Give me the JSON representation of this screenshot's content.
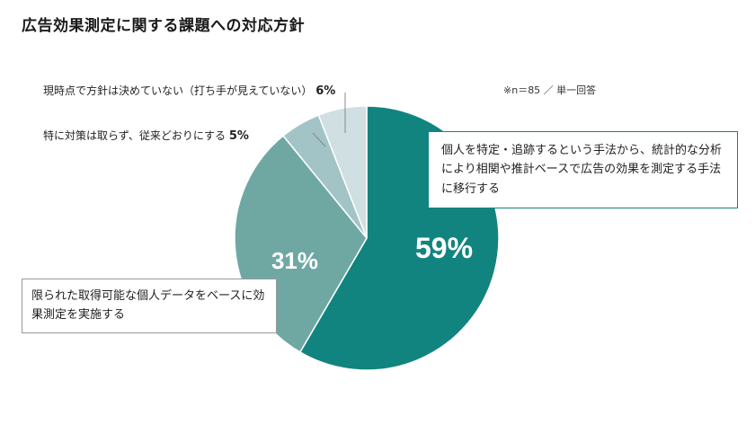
{
  "title": "広告効果測定に関する課題への対応方針",
  "note": "※n＝85 ／ 単一回答",
  "colors": {
    "teal_dark": "#12847f",
    "teal_mid": "#6fa8a3",
    "teal_light": "#a2c4c7",
    "teal_pale": "#cfdfe2"
  },
  "chart_data": {
    "type": "pie",
    "title": "広告効果測定に関する課題への対応方針",
    "slices": [
      {
        "label": "個人を特定・追跡するという手法から、統計的な分析により相関や推計ベースで広告の効果を測定する手法に移行する",
        "value": 59,
        "display": "59%"
      },
      {
        "label": "限られた取得可能な個人データをベースに効果測定を実施する",
        "value": 31,
        "display": "31%"
      },
      {
        "label": "特に対策は取らず、従来どおりにする",
        "value": 5,
        "display": "5%"
      },
      {
        "label": "現時点で方針は決めていない（打ち手が見えていない）",
        "value": 6,
        "display": "6%"
      }
    ]
  },
  "labels": {
    "main_callout": "個人を特定・追跡するという手法から、統計的な分析により相関や推計ベースで広告の効果を測定する手法に移行する",
    "left_callout": "限られた取得可能な個人データをベースに効果測定を実施する",
    "undecided_text": "現時点で方針は決めていない（打ち手が見えていない）",
    "undecided_pct": "6%",
    "no_action_text": "特に対策は取らず、従来どおりにする",
    "no_action_pct": "5%",
    "big_pct_1": "59%",
    "big_pct_2": "31%"
  }
}
